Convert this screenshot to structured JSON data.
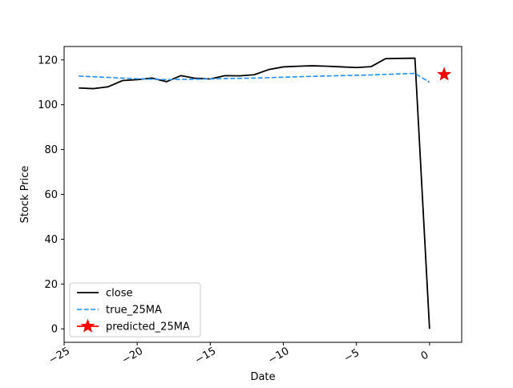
{
  "chart_data": {
    "type": "line",
    "title": "",
    "xlabel": "Date",
    "ylabel": "Stock Price",
    "xlim": [
      -25,
      2.2
    ],
    "ylim": [
      -6,
      126
    ],
    "grid": false,
    "legend_position": "lower-left",
    "x_ticks": [
      -25,
      -20,
      -15,
      -10,
      -5,
      0
    ],
    "x_tick_labels": [
      "−25",
      "−20",
      "−15",
      "−10",
      "−5",
      "0"
    ],
    "y_ticks": [
      0,
      20,
      40,
      60,
      80,
      100,
      120
    ],
    "y_tick_labels": [
      "0",
      "20",
      "40",
      "60",
      "80",
      "100",
      "120"
    ],
    "series": [
      {
        "name": "close",
        "style": "solid",
        "color": "#000000",
        "x": [
          -24,
          -23,
          -22,
          -21,
          -20,
          -19,
          -18,
          -17,
          -16,
          -15,
          -14,
          -13,
          -12,
          -11,
          -10,
          -9,
          -8,
          -7,
          -6,
          -5,
          -4,
          -3,
          -2,
          -1,
          0
        ],
        "y": [
          107.5,
          107.2,
          108.0,
          110.8,
          111.2,
          111.9,
          110.3,
          113.0,
          111.8,
          111.5,
          113.0,
          112.9,
          113.4,
          115.7,
          116.9,
          117.2,
          117.4,
          117.2,
          116.9,
          116.6,
          117.0,
          120.6,
          120.7,
          120.8,
          0.0
        ]
      },
      {
        "name": "true_25MA",
        "style": "dashed",
        "color": "#1e90ff",
        "x": [
          -24,
          -22,
          -20,
          -18,
          -16,
          -14,
          -12,
          -10,
          -8,
          -6,
          -4,
          -2,
          -1,
          0
        ],
        "y": [
          112.8,
          112.2,
          111.6,
          111.2,
          111.4,
          111.7,
          111.9,
          112.3,
          112.7,
          113.0,
          113.3,
          113.8,
          114.0,
          110.0
        ]
      },
      {
        "name": "predicted_25MA",
        "style": "marker-star",
        "color": "#ff0000",
        "x": [
          1
        ],
        "y": [
          113.5
        ]
      }
    ]
  }
}
